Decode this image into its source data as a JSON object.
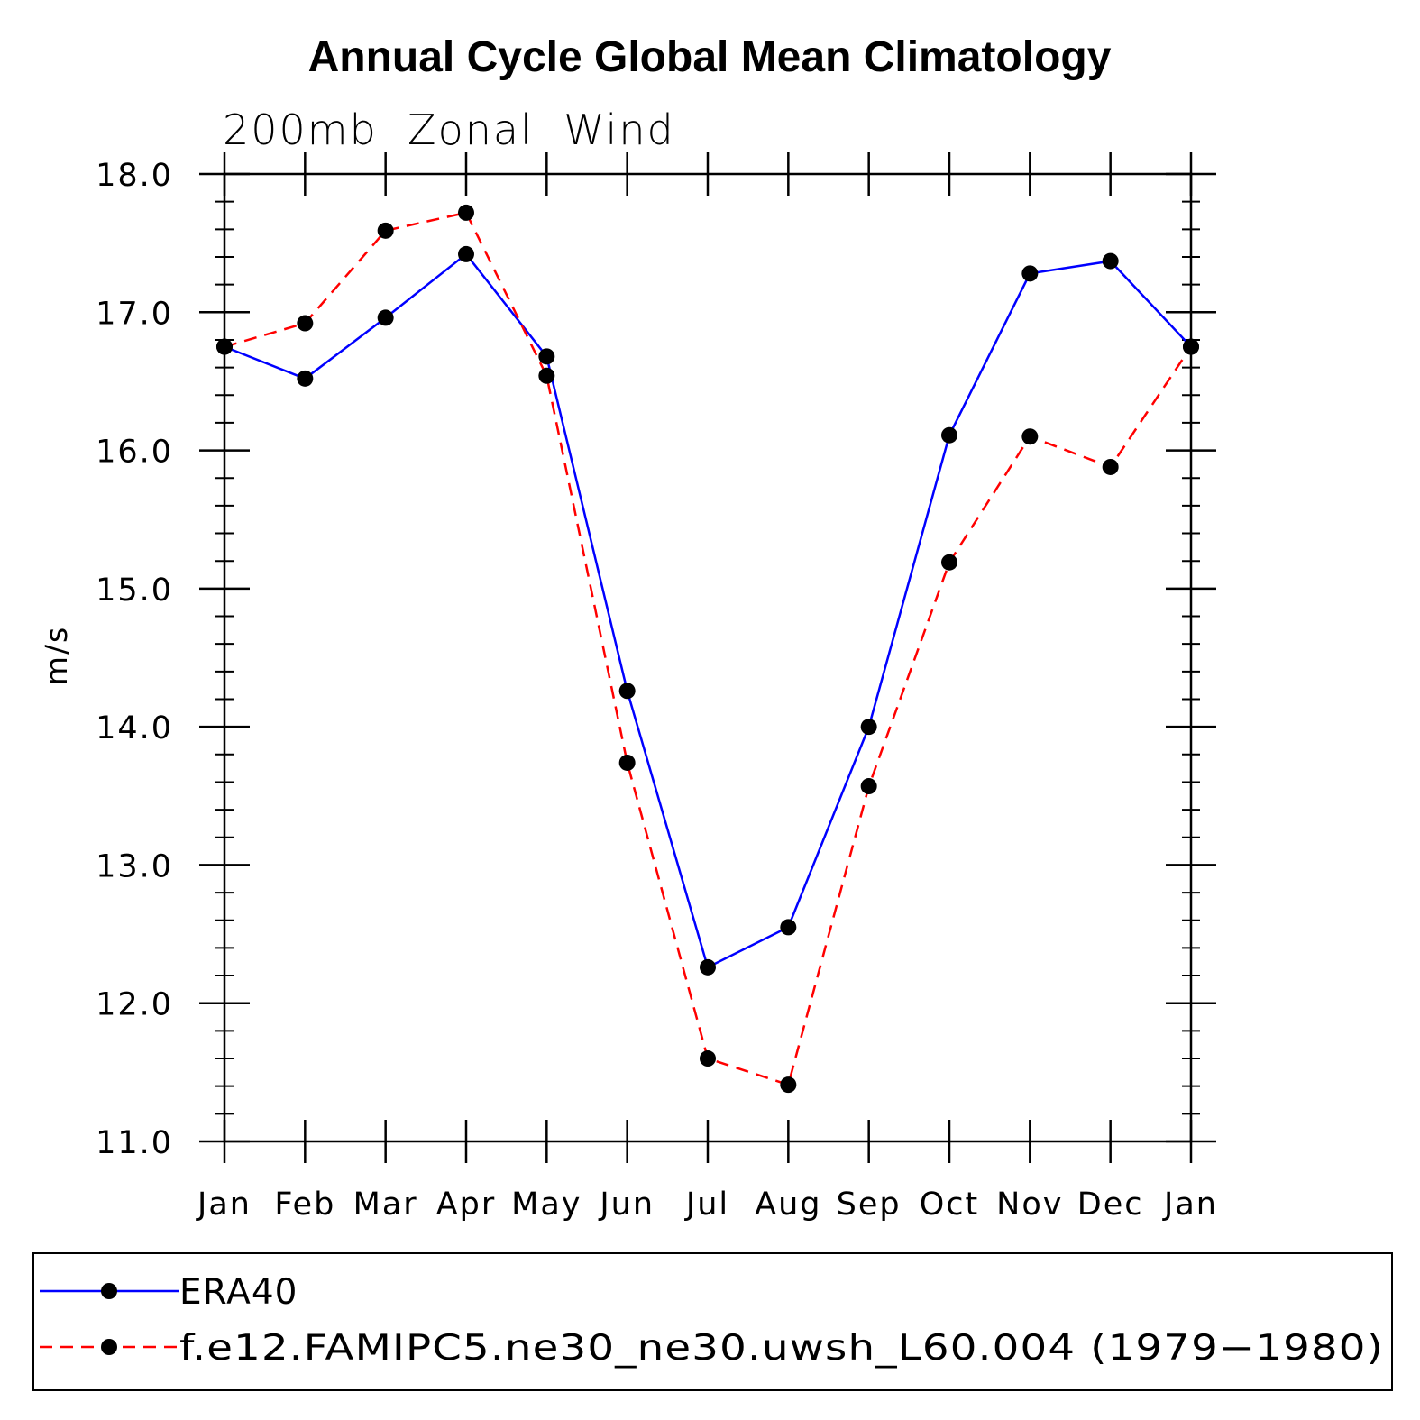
{
  "chart_data": {
    "type": "line",
    "title": "Annual Cycle Global Mean Climatology",
    "subtitle": "200mb  Zonal  Wind",
    "ylabel": "m/s",
    "xlabel": "",
    "categories": [
      "Jan",
      "Feb",
      "Mar",
      "Apr",
      "May",
      "Jun",
      "Jul",
      "Aug",
      "Sep",
      "Oct",
      "Nov",
      "Dec",
      "Jan"
    ],
    "ylim": [
      11.0,
      18.0
    ],
    "yticks": [
      "11.0",
      "12.0",
      "13.0",
      "14.0",
      "15.0",
      "16.0",
      "17.0",
      "18.0"
    ],
    "grid": false,
    "legend_position": "bottom",
    "series": [
      {
        "name": "ERA40",
        "color": "#0000ff",
        "line_style": "solid",
        "marker": "filled-circle",
        "values": [
          16.75,
          16.52,
          16.96,
          17.42,
          16.68,
          14.26,
          12.26,
          12.55,
          14.0,
          16.11,
          17.28,
          17.37,
          16.75
        ]
      },
      {
        "name": "f.e12.FAMIPC5.ne30_ne30.uwsh_L60.004 (1979−1980)",
        "color": "#ff0000",
        "line_style": "dashed",
        "marker": "filled-circle",
        "values": [
          16.75,
          16.92,
          17.59,
          17.72,
          16.54,
          13.74,
          11.6,
          11.41,
          13.57,
          15.19,
          16.1,
          15.88,
          16.75
        ]
      }
    ]
  }
}
